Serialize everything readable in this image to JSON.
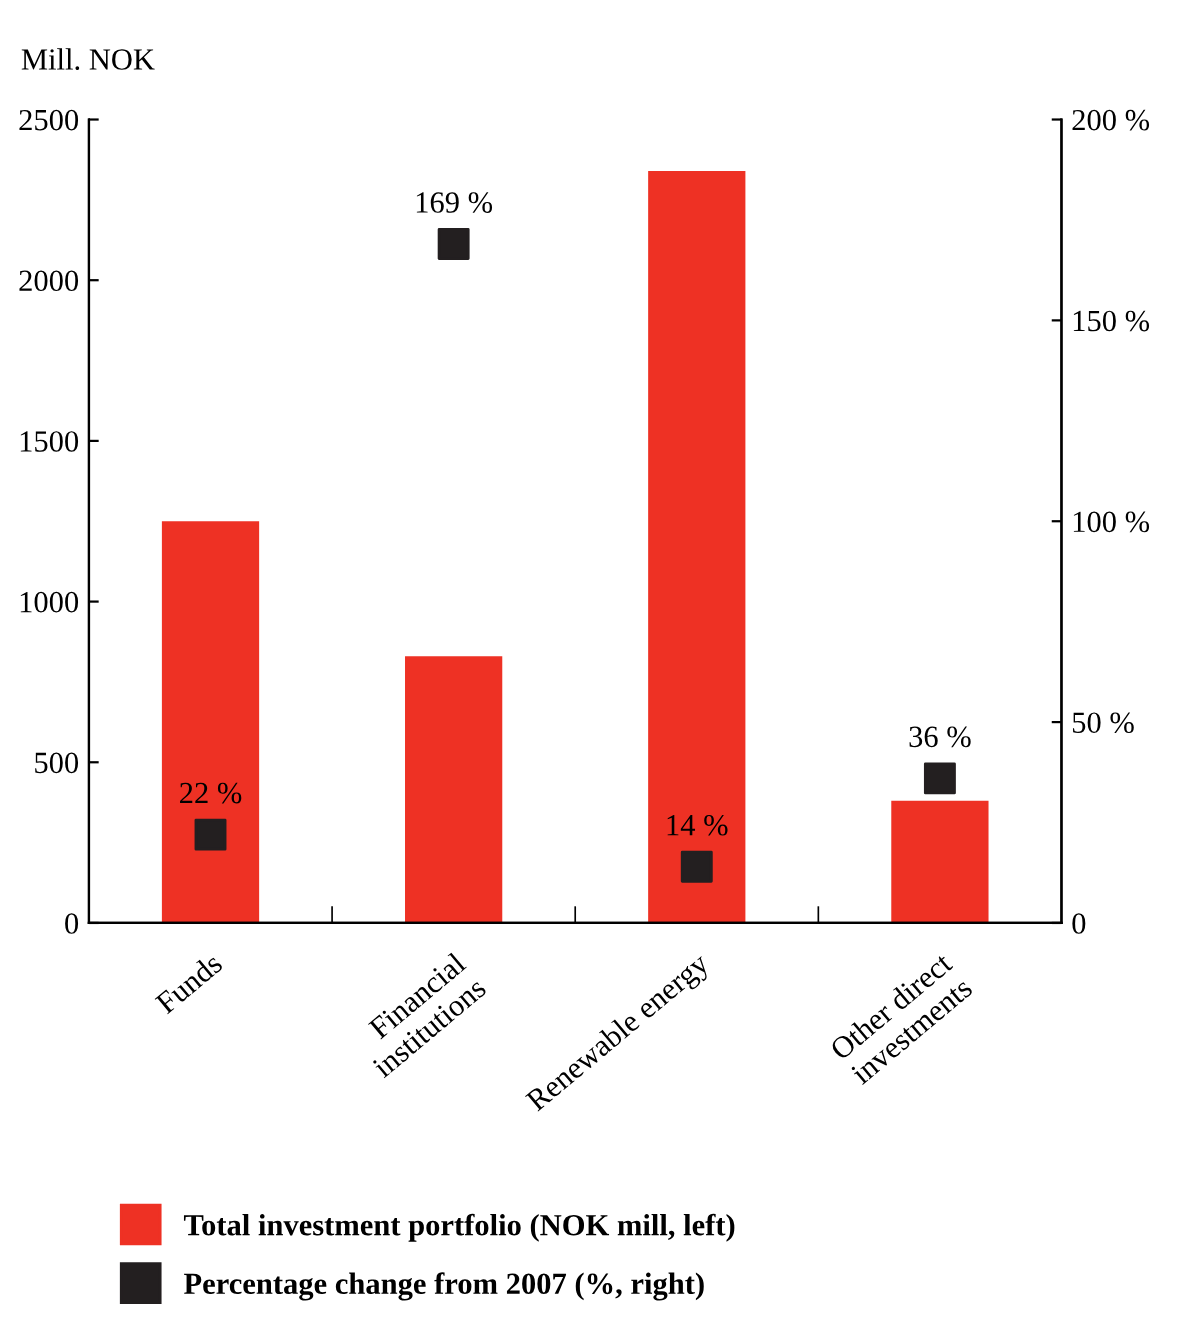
{
  "chart_data": {
    "type": "bar",
    "ylabel": "Mill. NOK",
    "categories": [
      "Funds",
      "Financial\ninstitutions",
      "Renewable energy",
      "Other direct\ninvestments"
    ],
    "series": [
      {
        "name": "Total investment portfolio (NOK mill, left)",
        "color": "#ee3124",
        "values": [
          1250,
          830,
          2340,
          380
        ]
      },
      {
        "name": "Percentage change from 2007 (%, right)",
        "type": "scatter",
        "axis": "y2",
        "color": "#231f20",
        "marker": "square",
        "values": [
          22,
          169,
          14,
          36
        ],
        "value_labels": [
          "22 %",
          "169 %",
          "14 %",
          "36 %"
        ]
      }
    ],
    "ylim": [
      0,
      2500
    ],
    "yticks": [
      0,
      500,
      1000,
      1500,
      2000,
      2500
    ],
    "y2lim": [
      0,
      200
    ],
    "y2ticks": [
      0,
      {
        "value": 50,
        "label": "50 %"
      },
      {
        "value": 100,
        "label": "100 %"
      },
      {
        "value": 150,
        "label": "150 %"
      },
      {
        "value": 200,
        "label": "200 %"
      }
    ],
    "grid": false,
    "legend": "bottom"
  }
}
